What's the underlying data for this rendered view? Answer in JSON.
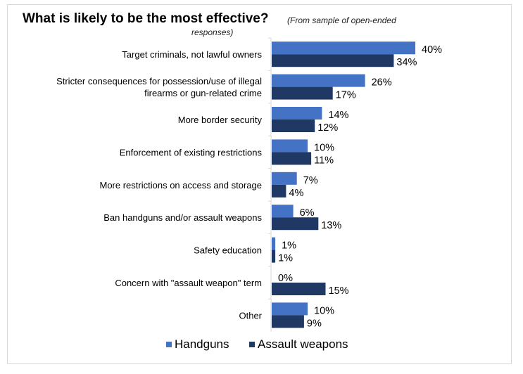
{
  "chart_data": {
    "type": "bar",
    "orientation": "horizontal",
    "title": "What is likely to be the most effective?",
    "subtitle": [
      "(From sample of open-ended",
      "responses)"
    ],
    "categories": [
      [
        "Target criminals, not lawful owners"
      ],
      [
        "Stricter consequences for possession/use of illegal",
        "firearms or gun-related crime"
      ],
      [
        "More border security"
      ],
      [
        "Enforcement of existing restrictions"
      ],
      [
        "More restrictions on access and storage"
      ],
      [
        "Ban handguns and/or assault weapons"
      ],
      [
        "Safety education"
      ],
      [
        "Concern with \"assault weapon\" term"
      ],
      [
        "Other"
      ]
    ],
    "series": [
      {
        "name": "Handguns",
        "color": "#4472c4",
        "values": [
          40,
          26,
          14,
          10,
          7,
          6,
          1,
          0,
          10
        ]
      },
      {
        "name": "Assault weapons",
        "color": "#1f3864",
        "values": [
          34,
          17,
          12,
          11,
          4,
          13,
          1,
          15,
          9
        ]
      }
    ],
    "value_suffix": "%",
    "legend": "bottom",
    "grid": false
  }
}
